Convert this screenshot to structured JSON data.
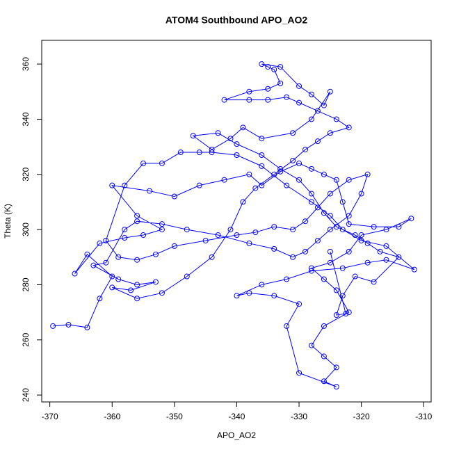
{
  "chart_data": {
    "type": "line",
    "markers": true,
    "title": "ATOM4 Southbound APO_AO2",
    "xlabel": "APO_AO2",
    "ylabel": "Theta (K)",
    "color": "#0000ff",
    "xlim": [
      -371.3,
      -308.8
    ],
    "ylim": [
      237.5,
      368.6
    ],
    "xticks": [
      -370,
      -360,
      -350,
      -340,
      -330,
      -320,
      -310
    ],
    "yticks": [
      240,
      260,
      280,
      300,
      320,
      340,
      360
    ],
    "x": [
      -369.5,
      -367,
      -364,
      -362,
      -360,
      -364,
      -366,
      -362,
      -358,
      -355,
      -352,
      -356,
      -360,
      -354,
      -350,
      -346,
      -342,
      -338,
      -336,
      -333,
      -330,
      -328,
      -326,
      -324,
      -323,
      -322,
      -318,
      -314,
      -312,
      -316,
      -320,
      -322,
      -325,
      -328,
      -326,
      -324,
      -322,
      -326,
      -328,
      -326,
      -324,
      -326,
      -324,
      -330,
      -332,
      -330,
      -334,
      -338,
      -340,
      -336,
      -332,
      -328,
      -323,
      -319,
      -316,
      -311.5,
      -316,
      -320,
      -323,
      -325,
      -328,
      -332,
      -336,
      -340,
      -344,
      -346,
      -349,
      -352,
      -355,
      -358,
      -361,
      -359,
      -356,
      -353,
      -350,
      -345,
      -340,
      -337,
      -334,
      -331,
      -329,
      -327,
      -325,
      -322,
      -319,
      -320,
      -322,
      -325,
      -327,
      -329,
      -331,
      -334,
      -338,
      -343,
      -348,
      -352,
      -356,
      -358,
      -361,
      -363,
      -359,
      -356,
      -353,
      -357,
      -360,
      -356,
      -352,
      -348,
      -344,
      -341,
      -339,
      -337,
      -334,
      -331,
      -329,
      -327,
      -325,
      -322,
      -324,
      -327,
      -330,
      -332,
      -335,
      -338,
      -342,
      -338,
      -335,
      -333,
      -334,
      -335,
      -336,
      -333,
      -330,
      -328,
      -326,
      -325,
      -328,
      -331,
      -336,
      -339,
      -341,
      -344,
      -347,
      -343,
      -340,
      -336,
      -333,
      -330,
      -328,
      -326,
      -324,
      -321,
      -319,
      -317,
      -314,
      -318,
      -321,
      -323,
      -324,
      -322.5,
      -325
    ],
    "values": [
      265,
      265.5,
      264.5,
      275,
      283,
      291,
      284,
      295,
      297,
      298,
      300,
      305,
      316,
      314,
      312,
      316,
      318,
      320,
      316,
      321,
      324,
      322,
      320,
      318,
      310,
      302,
      301,
      301,
      304,
      300,
      298,
      292,
      288,
      286,
      282,
      278,
      270,
      265,
      258,
      254,
      250,
      245,
      243,
      248,
      265,
      273,
      276,
      277,
      276,
      280,
      282,
      285,
      286,
      288,
      289,
      285.5,
      294,
      296,
      300,
      305,
      310,
      316,
      323,
      327,
      328,
      328,
      328,
      324,
      324,
      316,
      296,
      290,
      289,
      291,
      294,
      296,
      298,
      299,
      301,
      300,
      303,
      308,
      313,
      318,
      320,
      313,
      305,
      300,
      296,
      292,
      290,
      293,
      295,
      298,
      300,
      302,
      303,
      300,
      288,
      287,
      282,
      280,
      281,
      278,
      279,
      275,
      277,
      283,
      290,
      300,
      310,
      315,
      320,
      325,
      329,
      332,
      335,
      337,
      340,
      343,
      346,
      348,
      347,
      347,
      347,
      350,
      351,
      353,
      358,
      359,
      360,
      359,
      352,
      349,
      345,
      350,
      340,
      335,
      333,
      337,
      333,
      329,
      334,
      335,
      331,
      327,
      322,
      318,
      313,
      306,
      301,
      298,
      295,
      292,
      290,
      281,
      283,
      276,
      269,
      269.5,
      292
    ]
  }
}
